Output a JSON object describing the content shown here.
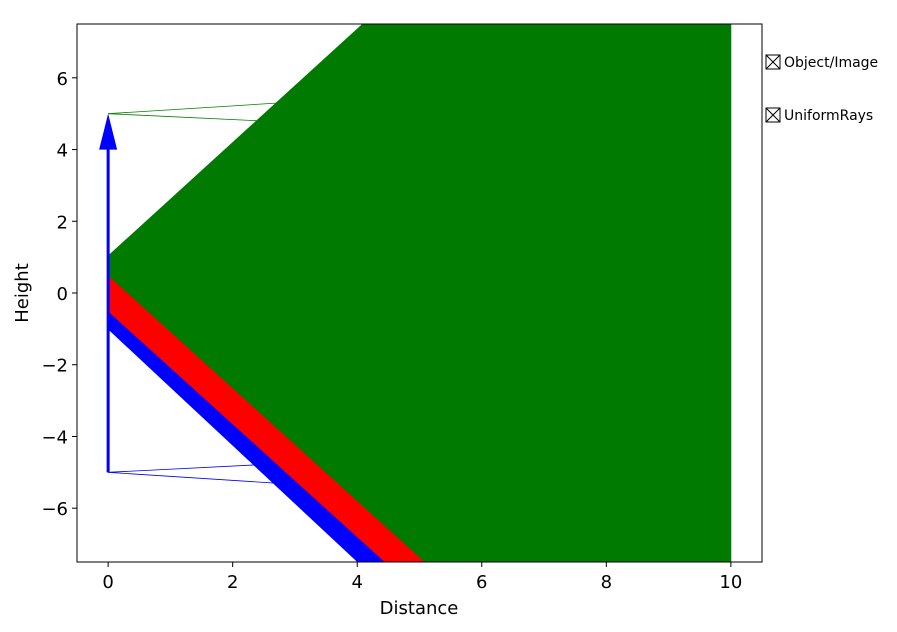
{
  "chart_data": {
    "type": "raytrace",
    "xlabel": "Distance",
    "ylabel": "Height",
    "xlim": [
      -0.5,
      10.5
    ],
    "ylim": [
      -7.5,
      7.5
    ],
    "xticks": [
      0,
      2,
      4,
      6,
      8,
      10
    ],
    "yticks": [
      {
        "value": -6,
        "label": "−6"
      },
      {
        "value": -4,
        "label": "−4"
      },
      {
        "value": -2,
        "label": "−2"
      },
      0,
      2,
      4,
      6
    ],
    "legend": [
      "Object/Image",
      "UniformRays"
    ],
    "lines": [
      {
        "color": "#0000ff",
        "x": [
          0,
          2.52
        ],
        "y": [
          -5,
          -4.78
        ]
      },
      {
        "color": "#0000ff",
        "x": [
          0,
          2.76
        ],
        "y": [
          -5,
          -5.31
        ]
      },
      {
        "color": "#008000",
        "x": [
          0,
          2.76
        ],
        "y": [
          5,
          5.3
        ]
      },
      {
        "color": "#008000",
        "x": [
          0,
          2.44
        ],
        "y": [
          5,
          4.8
        ]
      }
    ],
    "areas": [
      {
        "color": "#0000ff",
        "x": [
          0,
          4.01,
          4.45,
          0
        ],
        "y": [
          -1,
          -7.5,
          -7.5,
          -0.5
        ]
      },
      {
        "color": "#ff0000",
        "x": [
          0,
          4.45,
          5.09,
          0
        ],
        "y": [
          -0.5,
          -7.5,
          -7.5,
          0.5
        ]
      },
      {
        "color": "#007a00",
        "x": [
          0,
          5.09,
          10,
          10,
          4.09,
          0
        ],
        "y": [
          0.5,
          -7.5,
          -7.5,
          7.5,
          7.5,
          1.03
        ]
      }
    ],
    "arrow": {
      "color": "#0000ff",
      "x": 0,
      "y": [
        -5,
        5
      ]
    }
  }
}
